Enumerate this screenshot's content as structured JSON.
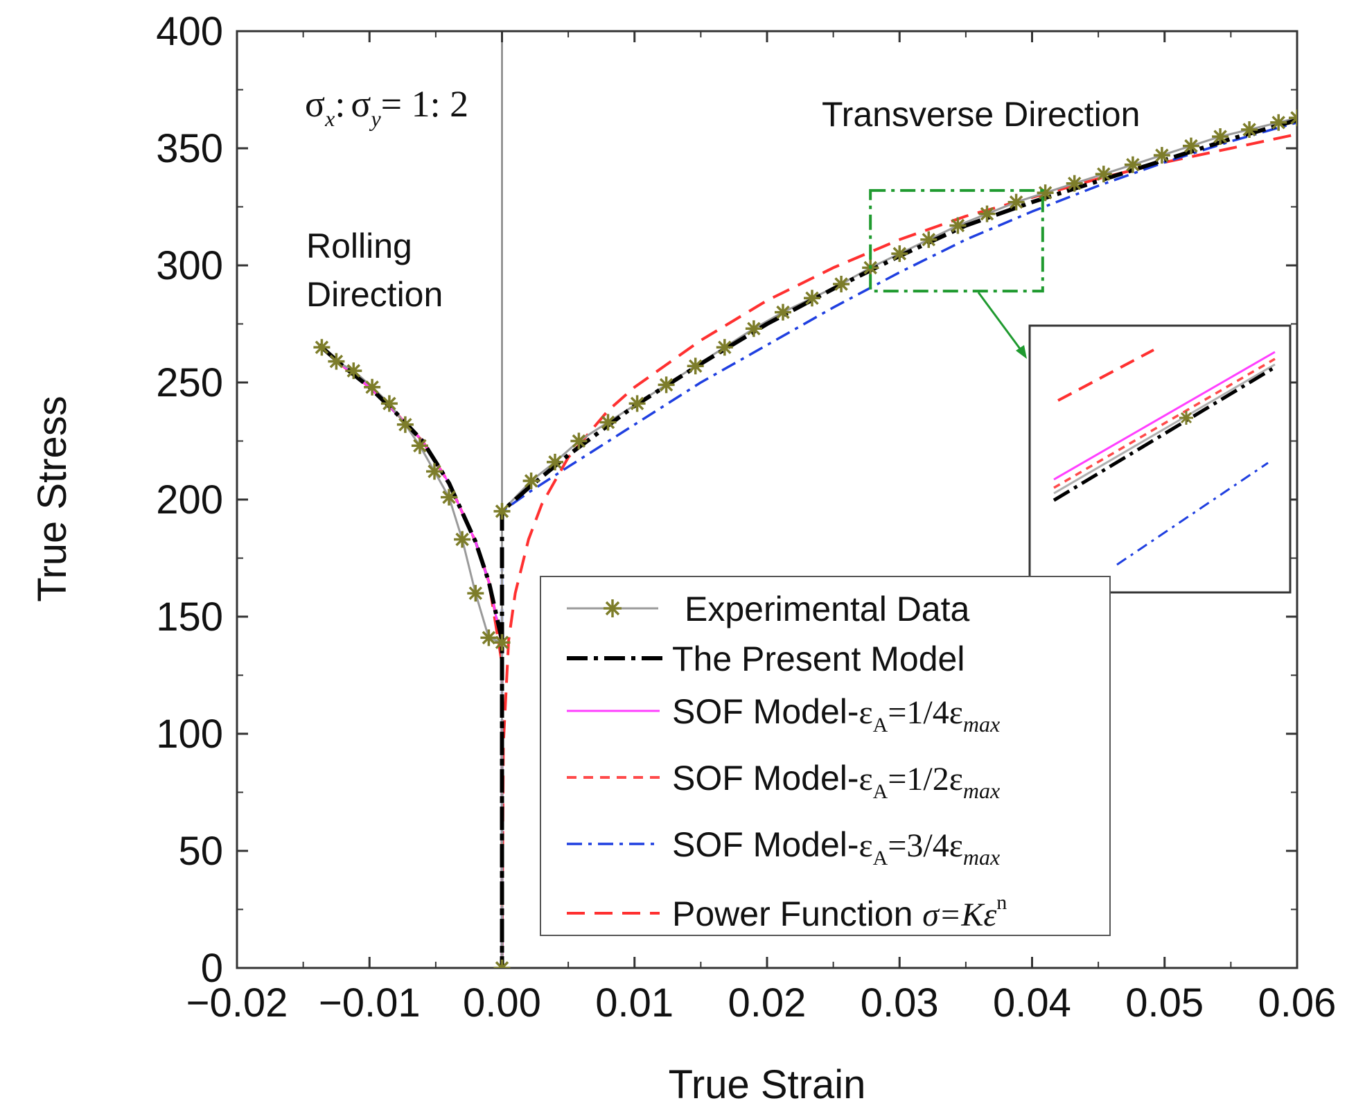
{
  "chart_data": {
    "type": "line",
    "xlabel": "True Strain",
    "ylabel": "True Stress",
    "xlim": [
      -0.02,
      0.06
    ],
    "ylim": [
      0,
      400
    ],
    "x_ticks": [
      -0.02,
      -0.01,
      0.0,
      0.01,
      0.02,
      0.03,
      0.04,
      0.05,
      0.06
    ],
    "x_tick_labels": [
      "−0.02",
      "−0.01",
      "0.00",
      "0.01",
      "0.02",
      "0.03",
      "0.04",
      "0.05",
      "0.06"
    ],
    "y_ticks": [
      0,
      50,
      100,
      150,
      200,
      250,
      300,
      350,
      400
    ],
    "y_tick_labels": [
      "0",
      "50",
      "100",
      "150",
      "200",
      "250",
      "300",
      "350",
      "400"
    ],
    "vertical_reference_line_x": 0.0,
    "annotations": {
      "ratio": {
        "sigma": "σ",
        "sub_x": "x",
        "sub_y": "y",
        "colon": ":",
        "equals": "= 1: 2"
      },
      "rolling_line1": "Rolling",
      "rolling_line2": "Direction",
      "transverse": "Transverse Direction"
    },
    "zoom_box_data": {
      "x": [
        0.0278,
        0.0408
      ],
      "y": [
        289,
        332
      ]
    },
    "series": [
      {
        "name": "Experimental Data",
        "style": "gray-solid-star-markers",
        "color": "#9a9a9a",
        "marker_color": "#7d7d2a",
        "x": [
          -0.0136,
          -0.0125,
          -0.0112,
          -0.0098,
          -0.0085,
          -0.0073,
          -0.0062,
          -0.0051,
          -0.004,
          -0.003,
          -0.002,
          -0.001,
          0.0,
          0.0,
          0.0,
          0.0022,
          0.004,
          0.0058,
          0.008,
          0.0102,
          0.0124,
          0.0146,
          0.0168,
          0.019,
          0.0212,
          0.0234,
          0.0256,
          0.0278,
          0.03,
          0.0322,
          0.0344,
          0.0366,
          0.0388,
          0.041,
          0.0432,
          0.0454,
          0.0476,
          0.0498,
          0.052,
          0.0542,
          0.0564,
          0.0586,
          0.06
        ],
        "y": [
          265,
          259,
          255,
          248,
          241,
          232,
          223,
          212,
          201,
          183,
          160,
          141,
          139,
          0,
          195,
          208,
          216,
          225,
          233,
          241,
          249,
          257,
          265,
          273,
          280,
          286,
          292,
          299,
          305,
          311,
          317,
          322,
          327,
          331,
          335,
          339,
          343,
          347,
          351,
          355,
          358,
          361,
          363
        ]
      },
      {
        "name": "The Present Model",
        "style": "black-dash-dot",
        "color": "#000000",
        "x": [
          -0.0138,
          -0.012,
          -0.01,
          -0.008,
          -0.006,
          -0.004,
          -0.002,
          -0.001,
          0.0,
          0.0,
          0.0,
          0.002,
          0.005,
          0.01,
          0.015,
          0.02,
          0.025,
          0.03,
          0.035,
          0.04,
          0.045,
          0.05,
          0.055,
          0.06
        ],
        "y": [
          266,
          257,
          248,
          237,
          225,
          207,
          182,
          165,
          140,
          0,
          195,
          205,
          219,
          240,
          258,
          275,
          290,
          304,
          317,
          327,
          336,
          345,
          354,
          362
        ]
      },
      {
        "name": "SOF Model-εA=1/4εmax",
        "style": "magenta-solid",
        "color": "#ff3fff",
        "x": [
          -0.0138,
          -0.012,
          -0.01,
          -0.008,
          -0.006,
          -0.004,
          -0.002,
          -0.001,
          0.0
        ],
        "y": [
          266,
          257,
          248,
          237,
          225,
          207,
          182,
          165,
          138
        ]
      },
      {
        "name": "SOF Model-εA=1/2εmax",
        "style": "red-short-dash",
        "color": "#ff4a4a",
        "x": [
          -0.0138,
          -0.012,
          -0.01,
          -0.008,
          -0.006,
          -0.004,
          -0.002,
          -0.001,
          0.0
        ],
        "y": [
          266,
          257,
          248,
          237,
          225,
          207,
          182,
          165,
          138
        ]
      },
      {
        "name": "SOF Model-εA=3/4εmax",
        "style": "blue-dash-dot",
        "color": "#1f3fe0",
        "x": [
          -0.0138,
          -0.012,
          -0.01,
          -0.008,
          -0.006,
          -0.004,
          -0.002,
          -0.001,
          0.0,
          0.0,
          0.0,
          0.002,
          0.005,
          0.01,
          0.015,
          0.02,
          0.025,
          0.03,
          0.035,
          0.04,
          0.045,
          0.05,
          0.055,
          0.06
        ],
        "y": [
          266,
          257,
          248,
          237,
          225,
          207,
          182,
          165,
          138,
          0,
          195,
          203,
          214,
          232,
          250,
          266,
          282,
          297,
          311,
          323,
          334,
          344,
          353,
          361
        ]
      },
      {
        "name": "Power Function σ=Kεn",
        "style": "red-long-dash",
        "color": "#ff3030",
        "x": [
          -0.0138,
          -0.012,
          -0.01,
          -0.008,
          -0.006,
          -0.004,
          -0.002,
          -0.001,
          0.0,
          0.0,
          0.0001,
          0.0005,
          0.001,
          0.002,
          0.003,
          0.005,
          0.008,
          0.01,
          0.015,
          0.02,
          0.025,
          0.03,
          0.035,
          0.04,
          0.045,
          0.05,
          0.055,
          0.06
        ],
        "y": [
          266,
          257,
          248,
          237,
          225,
          207,
          182,
          165,
          130,
          0,
          95,
          140,
          160,
          183,
          198,
          218,
          238,
          248,
          268,
          285,
          299,
          311,
          321,
          329,
          337,
          344,
          350,
          356
        ]
      }
    ]
  },
  "legend": {
    "items": [
      {
        "label": "Experimental Data"
      },
      {
        "label": "The Present Model"
      },
      {
        "prefix": "SOF Model-",
        "eps": "ε",
        "sub": "A",
        "mid": "=1/4",
        "eps2": "ε",
        "sub2": "max"
      },
      {
        "prefix": "SOF Model-",
        "eps": "ε",
        "sub": "A",
        "mid": "=1/2",
        "eps2": "ε",
        "sub2": "max"
      },
      {
        "prefix": "SOF Model-",
        "eps": "ε",
        "sub": "A",
        "mid": "=3/4",
        "eps2": "ε",
        "sub2": "max"
      },
      {
        "prefix": "Power Function ",
        "formula": "σ=Kε",
        "sup": "n"
      }
    ]
  }
}
